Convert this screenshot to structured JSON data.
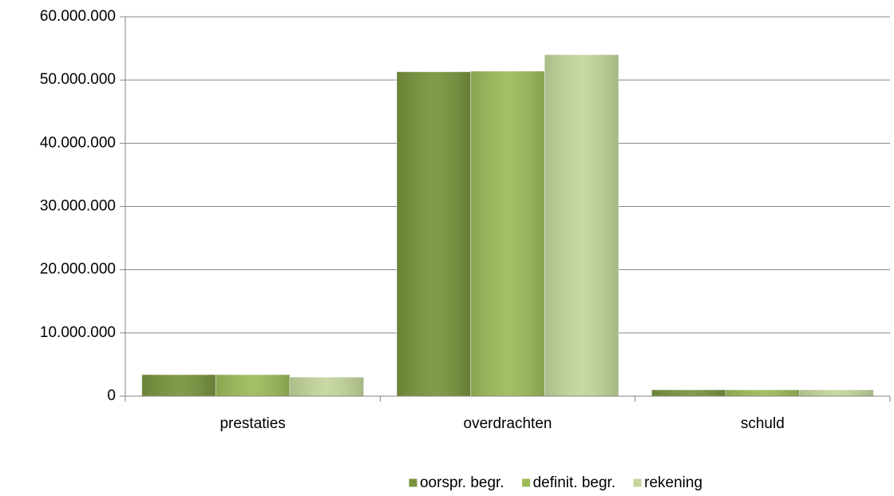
{
  "chart_data": {
    "type": "bar",
    "categories": [
      "prestaties",
      "overdrachten",
      "schuld"
    ],
    "series": [
      {
        "name": "oorspr. begr.",
        "color": "#77933c",
        "values": [
          3400000,
          51300000,
          1000000
        ]
      },
      {
        "name": "definit. begr.",
        "color": "#9bbb59",
        "values": [
          3400000,
          51400000,
          1000000
        ]
      },
      {
        "name": "rekening",
        "color": "#c3d69b",
        "values": [
          3000000,
          54000000,
          1000000
        ]
      }
    ],
    "ylim": [
      0,
      60000000
    ],
    "yticks": [
      {
        "value": 0,
        "label": "0"
      },
      {
        "value": 10000000,
        "label": "10.000.000"
      },
      {
        "value": 20000000,
        "label": "20.000.000"
      },
      {
        "value": 30000000,
        "label": "30.000.000"
      },
      {
        "value": 40000000,
        "label": "40.000.000"
      },
      {
        "value": 50000000,
        "label": "50.000.000"
      },
      {
        "value": 60000000,
        "label": "60.000.000"
      }
    ],
    "grid": true,
    "legend": "bottom"
  }
}
